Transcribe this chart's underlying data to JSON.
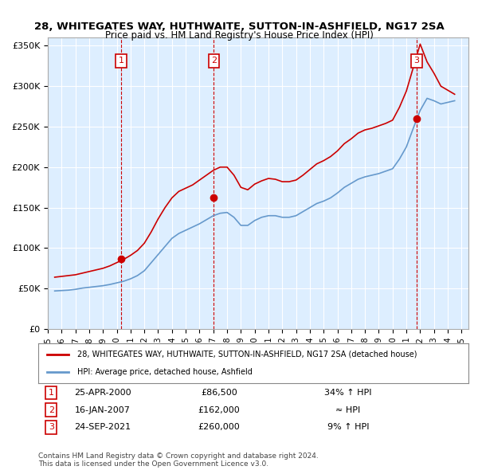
{
  "title": "28, WHITEGATES WAY, HUTHWAITE, SUTTON-IN-ASHFIELD, NG17 2SA",
  "subtitle": "Price paid vs. HM Land Registry's House Price Index (HPI)",
  "ylabel": "",
  "bg_color": "#ffffff",
  "plot_bg_color": "#ddeeff",
  "grid_color": "#ffffff",
  "line_color_property": "#cc0000",
  "line_color_hpi": "#6699cc",
  "sale_marker_color": "#cc0000",
  "annotation_box_color": "#cc0000",
  "ylim": [
    0,
    360000
  ],
  "yticks": [
    0,
    50000,
    100000,
    150000,
    200000,
    250000,
    300000,
    350000
  ],
  "ytick_labels": [
    "£0",
    "£50K",
    "£100K",
    "£150K",
    "£200K",
    "£250K",
    "£300K",
    "£350K"
  ],
  "xmin": 1995.0,
  "xmax": 2025.5,
  "sales": [
    {
      "num": 1,
      "year": 2000.32,
      "price": 86500,
      "label": "25-APR-2000",
      "pct": "34% ↑ HPI"
    },
    {
      "num": 2,
      "year": 2007.04,
      "price": 162000,
      "label": "16-JAN-2007",
      "pct": "≈ HPI"
    },
    {
      "num": 3,
      "year": 2021.73,
      "price": 260000,
      "label": "24-SEP-2021",
      "pct": "9% ↑ HPI"
    }
  ],
  "legend_line1": "28, WHITEGATES WAY, HUTHWAITE, SUTTON-IN-ASHFIELD, NG17 2SA (detached house)",
  "legend_line2": "HPI: Average price, detached house, Ashfield",
  "footer": "Contains HM Land Registry data © Crown copyright and database right 2024.\nThis data is licensed under the Open Government Licence v3.0.",
  "hpi_data": {
    "years": [
      1995.5,
      1996.0,
      1996.5,
      1997.0,
      1997.5,
      1998.0,
      1998.5,
      1999.0,
      1999.5,
      2000.0,
      2000.5,
      2001.0,
      2001.5,
      2002.0,
      2002.5,
      2003.0,
      2003.5,
      2004.0,
      2004.5,
      2005.0,
      2005.5,
      2006.0,
      2006.5,
      2007.0,
      2007.5,
      2008.0,
      2008.5,
      2009.0,
      2009.5,
      2010.0,
      2010.5,
      2011.0,
      2011.5,
      2012.0,
      2012.5,
      2013.0,
      2013.5,
      2014.0,
      2014.5,
      2015.0,
      2015.5,
      2016.0,
      2016.5,
      2017.0,
      2017.5,
      2018.0,
      2018.5,
      2019.0,
      2019.5,
      2020.0,
      2020.5,
      2021.0,
      2021.5,
      2022.0,
      2022.5,
      2023.0,
      2023.5,
      2024.0,
      2024.5
    ],
    "values": [
      47000,
      47500,
      48000,
      49000,
      50500,
      51500,
      52500,
      53500,
      55000,
      57000,
      59000,
      62000,
      66000,
      72000,
      82000,
      92000,
      102000,
      112000,
      118000,
      122000,
      126000,
      130000,
      135000,
      140000,
      143000,
      144000,
      138000,
      128000,
      128000,
      134000,
      138000,
      140000,
      140000,
      138000,
      138000,
      140000,
      145000,
      150000,
      155000,
      158000,
      162000,
      168000,
      175000,
      180000,
      185000,
      188000,
      190000,
      192000,
      195000,
      198000,
      210000,
      225000,
      248000,
      270000,
      285000,
      282000,
      278000,
      280000,
      282000
    ]
  },
  "property_data": {
    "years": [
      1995.5,
      1996.0,
      1996.5,
      1997.0,
      1997.5,
      1998.0,
      1998.5,
      1999.0,
      1999.5,
      2000.0,
      2000.5,
      2001.0,
      2001.5,
      2002.0,
      2002.5,
      2003.0,
      2003.5,
      2004.0,
      2004.5,
      2005.0,
      2005.5,
      2006.0,
      2006.5,
      2007.0,
      2007.5,
      2008.0,
      2008.5,
      2009.0,
      2009.5,
      2010.0,
      2010.5,
      2011.0,
      2011.5,
      2012.0,
      2012.5,
      2013.0,
      2013.5,
      2014.0,
      2014.5,
      2015.0,
      2015.5,
      2016.0,
      2016.5,
      2017.0,
      2017.5,
      2018.0,
      2018.5,
      2019.0,
      2019.5,
      2020.0,
      2020.5,
      2021.0,
      2021.5,
      2022.0,
      2022.5,
      2023.0,
      2023.5,
      2024.0,
      2024.5
    ],
    "values": [
      64000,
      65000,
      66000,
      67000,
      69000,
      71000,
      73000,
      75000,
      78000,
      82000,
      86000,
      91000,
      97000,
      106000,
      120000,
      136000,
      150000,
      162000,
      170000,
      174000,
      178000,
      184000,
      190000,
      196000,
      200000,
      200000,
      190000,
      175000,
      172000,
      179000,
      183000,
      186000,
      185000,
      182000,
      182000,
      184000,
      190000,
      197000,
      204000,
      208000,
      213000,
      220000,
      229000,
      235000,
      242000,
      246000,
      248000,
      251000,
      254000,
      258000,
      274000,
      294000,
      323000,
      352000,
      330000,
      316000,
      300000,
      295000,
      290000
    ]
  }
}
